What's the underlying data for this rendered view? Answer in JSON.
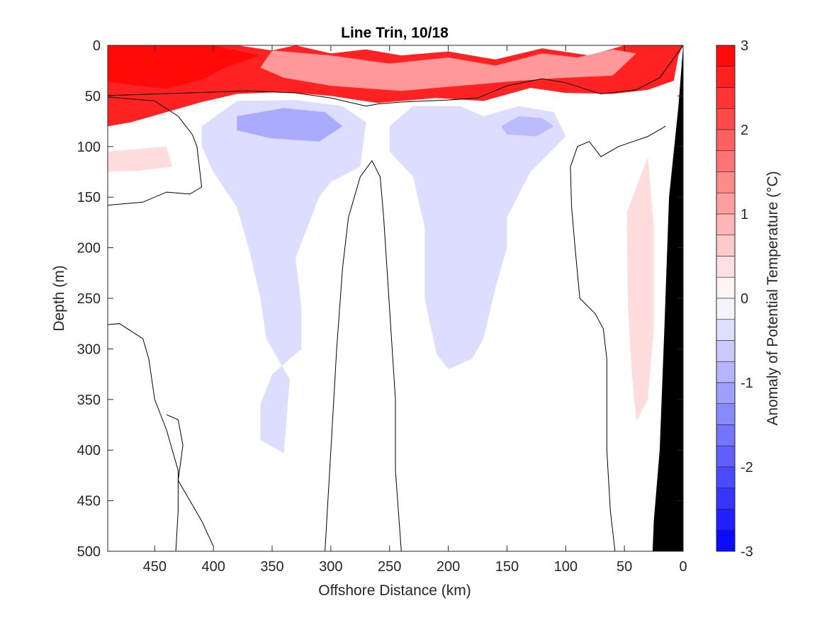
{
  "chart_data": {
    "type": "contour",
    "title": "Line Trin, 10/18",
    "xlabel": "Offshore Distance (km)",
    "ylabel": "Depth (m)",
    "colorbar_label": "Anomaly of Potential Temperature (°C)",
    "x_range": [
      490,
      0
    ],
    "x_reversed": true,
    "y_range": [
      0,
      500
    ],
    "y_reversed": true,
    "x_ticks": [
      450,
      400,
      350,
      300,
      250,
      200,
      150,
      100,
      50,
      0
    ],
    "y_ticks": [
      0,
      50,
      100,
      150,
      200,
      250,
      300,
      350,
      400,
      450,
      500
    ],
    "colorbar": {
      "range": [
        -3,
        3
      ],
      "step": 0.25,
      "ticks": [
        3,
        2,
        1,
        0,
        -1,
        -2,
        -3
      ],
      "low_color": "#0000ff",
      "mid_color": "#ffffff",
      "high_color": "#ff0000"
    },
    "zero_contour_color": "#000000",
    "bathymetry_color": "#000000",
    "grid": false,
    "anomaly_regions": [
      {
        "name": "surface-warm-layer",
        "level": 2.6,
        "polygon": [
          [
            490,
            0
          ],
          [
            380,
            0
          ],
          [
            350,
            5
          ],
          [
            330,
            0
          ],
          [
            300,
            8
          ],
          [
            270,
            4
          ],
          [
            240,
            10
          ],
          [
            200,
            6
          ],
          [
            160,
            14
          ],
          [
            120,
            3
          ],
          [
            80,
            10
          ],
          [
            50,
            0
          ],
          [
            20,
            0
          ],
          [
            0,
            0
          ],
          [
            4,
            10
          ],
          [
            8,
            35
          ],
          [
            30,
            44
          ],
          [
            60,
            48
          ],
          [
            100,
            47
          ],
          [
            130,
            42
          ],
          [
            170,
            55
          ],
          [
            210,
            52
          ],
          [
            260,
            57
          ],
          [
            300,
            50
          ],
          [
            340,
            46
          ],
          [
            380,
            48
          ],
          [
            410,
            56
          ],
          [
            440,
            66
          ],
          [
            470,
            76
          ],
          [
            490,
            80
          ]
        ]
      },
      {
        "name": "surface-warm-core",
        "level": 2.9,
        "polygon": [
          [
            490,
            0
          ],
          [
            400,
            0
          ],
          [
            360,
            10
          ],
          [
            390,
            22
          ],
          [
            410,
            34
          ],
          [
            440,
            43
          ],
          [
            470,
            39
          ],
          [
            490,
            36
          ]
        ]
      },
      {
        "name": "surface-warm-offshore-mid",
        "level": 1.2,
        "polygon": [
          [
            350,
            5
          ],
          [
            300,
            10
          ],
          [
            250,
            18
          ],
          [
            200,
            12
          ],
          [
            160,
            20
          ],
          [
            120,
            8
          ],
          [
            90,
            12
          ],
          [
            60,
            4
          ],
          [
            40,
            8
          ],
          [
            60,
            30
          ],
          [
            100,
            32
          ],
          [
            140,
            35
          ],
          [
            190,
            40
          ],
          [
            240,
            45
          ],
          [
            300,
            40
          ],
          [
            340,
            32
          ],
          [
            360,
            22
          ]
        ]
      },
      {
        "name": "nearshore-warm-patch",
        "level": 0.4,
        "polygon": [
          [
            48,
            165
          ],
          [
            47,
            260
          ],
          [
            44,
            320
          ],
          [
            40,
            372
          ],
          [
            30,
            350
          ],
          [
            25,
            280
          ],
          [
            25,
            180
          ],
          [
            30,
            110
          ]
        ]
      },
      {
        "name": "deep-offshore-warm-patch",
        "level": 0.4,
        "polygon": [
          [
            490,
            105
          ],
          [
            440,
            100
          ],
          [
            435,
            120
          ],
          [
            465,
            124
          ],
          [
            490,
            125
          ]
        ]
      },
      {
        "name": "cool-tongue-offshore",
        "level": -0.4,
        "polygon": [
          [
            410,
            80
          ],
          [
            380,
            55
          ],
          [
            330,
            54
          ],
          [
            290,
            60
          ],
          [
            270,
            76
          ],
          [
            275,
            120
          ],
          [
            300,
            135
          ],
          [
            310,
            150
          ],
          [
            320,
            180
          ],
          [
            330,
            210
          ],
          [
            325,
            260
          ],
          [
            325,
            300
          ],
          [
            350,
            325
          ],
          [
            360,
            355
          ],
          [
            360,
            390
          ],
          [
            340,
            403
          ],
          [
            335,
            330
          ],
          [
            355,
            290
          ],
          [
            360,
            250
          ],
          [
            370,
            200
          ],
          [
            380,
            160
          ],
          [
            400,
            125
          ],
          [
            410,
            100
          ]
        ]
      },
      {
        "name": "cool-core-offshore",
        "level": -1.0,
        "polygon": [
          [
            380,
            70
          ],
          [
            340,
            62
          ],
          [
            305,
            66
          ],
          [
            290,
            80
          ],
          [
            310,
            95
          ],
          [
            350,
            92
          ],
          [
            380,
            84
          ]
        ]
      },
      {
        "name": "cool-tongue-mid",
        "level": -0.4,
        "polygon": [
          [
            250,
            80
          ],
          [
            230,
            60
          ],
          [
            190,
            60
          ],
          [
            170,
            70
          ],
          [
            140,
            60
          ],
          [
            110,
            66
          ],
          [
            100,
            90
          ],
          [
            130,
            125
          ],
          [
            150,
            170
          ],
          [
            150,
            200
          ],
          [
            160,
            240
          ],
          [
            170,
            290
          ],
          [
            180,
            310
          ],
          [
            200,
            320
          ],
          [
            210,
            305
          ],
          [
            220,
            250
          ],
          [
            220,
            180
          ],
          [
            230,
            130
          ],
          [
            250,
            105
          ]
        ]
      },
      {
        "name": "cool-core-mid",
        "level": -0.8,
        "polygon": [
          [
            155,
            80
          ],
          [
            140,
            70
          ],
          [
            120,
            72
          ],
          [
            110,
            80
          ],
          [
            125,
            90
          ],
          [
            150,
            88
          ]
        ]
      }
    ],
    "zero_contours": [
      {
        "name": "zero-contour-surface",
        "points": [
          [
            490,
            158
          ],
          [
            460,
            155
          ],
          [
            440,
            145
          ],
          [
            420,
            147
          ],
          [
            410,
            140
          ],
          [
            414,
            100
          ],
          [
            418,
            88
          ],
          [
            430,
            70
          ],
          [
            450,
            55
          ],
          [
            500,
            50
          ],
          [
            370,
            45
          ],
          [
            330,
            47
          ],
          [
            300,
            52
          ],
          [
            270,
            60
          ],
          [
            260,
            58
          ],
          [
            240,
            56
          ],
          [
            200,
            54
          ],
          [
            175,
            52
          ],
          [
            150,
            40
          ],
          [
            120,
            33
          ],
          [
            100,
            37
          ],
          [
            70,
            48
          ],
          [
            40,
            44
          ],
          [
            20,
            32
          ],
          [
            0,
            0
          ]
        ]
      },
      {
        "name": "zero-contour-warm-column",
        "points": [
          [
            240,
            500
          ],
          [
            245,
            420
          ],
          [
            245,
            350
          ],
          [
            250,
            260
          ],
          [
            255,
            170
          ],
          [
            258,
            130
          ],
          [
            265,
            114
          ],
          [
            275,
            130
          ],
          [
            285,
            170
          ],
          [
            290,
            220
          ],
          [
            295,
            300
          ],
          [
            300,
            400
          ],
          [
            303,
            460
          ],
          [
            305,
            500
          ]
        ]
      },
      {
        "name": "zero-contour-offshore-deep",
        "points": [
          [
            490,
            276
          ],
          [
            480,
            275
          ],
          [
            460,
            290
          ],
          [
            455,
            310
          ],
          [
            450,
            350
          ],
          [
            440,
            380
          ],
          [
            430,
            420
          ],
          [
            430,
            460
          ],
          [
            432,
            500
          ]
        ]
      },
      {
        "name": "zero-contour-offshore-inner",
        "points": [
          [
            440,
            365
          ],
          [
            430,
            370
          ],
          [
            426,
            395
          ],
          [
            430,
            430
          ],
          [
            420,
            450
          ],
          [
            410,
            470
          ],
          [
            400,
            495
          ]
        ]
      },
      {
        "name": "zero-contour-nearshore",
        "points": [
          [
            58,
            500
          ],
          [
            62,
            460
          ],
          [
            65,
            400
          ],
          [
            65,
            310
          ],
          [
            68,
            280
          ],
          [
            75,
            265
          ],
          [
            88,
            250
          ],
          [
            92,
            200
          ],
          [
            95,
            160
          ],
          [
            96,
            120
          ],
          [
            90,
            100
          ],
          [
            80,
            95
          ],
          [
            70,
            110
          ],
          [
            55,
            100
          ],
          [
            30,
            90
          ],
          [
            15,
            80
          ]
        ]
      }
    ],
    "bathymetry": [
      [
        0,
        0
      ],
      [
        4,
        60
      ],
      [
        12,
        150
      ],
      [
        16,
        280
      ],
      [
        20,
        400
      ],
      [
        25,
        470
      ],
      [
        26,
        500
      ],
      [
        0,
        500
      ]
    ]
  }
}
